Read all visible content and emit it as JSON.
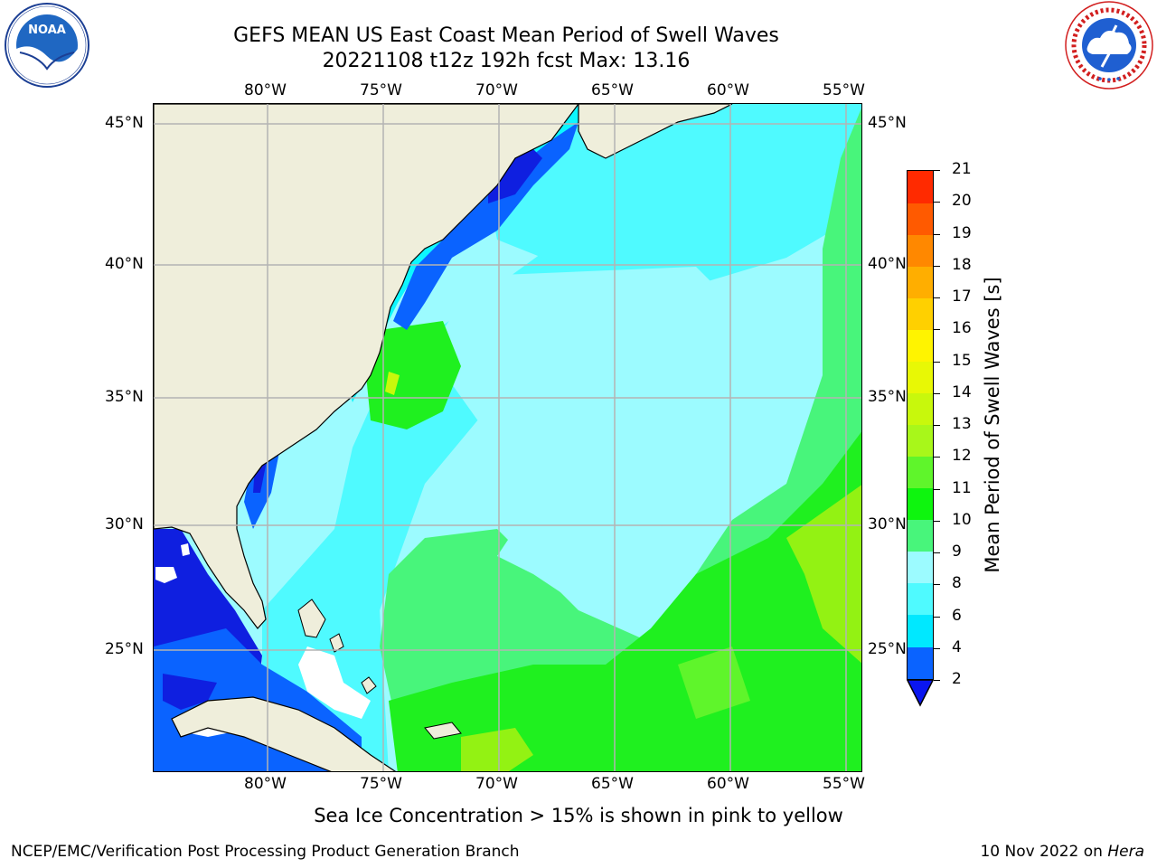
{
  "title": {
    "line1": "GEFS MEAN US East Coast Mean Period of Swell Waves",
    "line2": "20221108 t12z 192h fcst   Max: 13.16"
  },
  "logos": {
    "left": {
      "icon": "noaa-logo-icon",
      "text": "NOAA",
      "ring_text": "NATIONAL OCEANIC AND ATMOSPHERIC ADMINISTRATION · U.S. DEPARTMENT OF COMMERCE"
    },
    "right": {
      "icon": "national-weather-service-logo-icon",
      "ring_text": "NATIONAL WEATHER SERVICE"
    }
  },
  "map": {
    "lon_labels": [
      "80°W",
      "75°W",
      "70°W",
      "65°W",
      "60°W",
      "55°W"
    ],
    "lat_labels": [
      "45°N",
      "40°N",
      "35°N",
      "30°N",
      "25°N"
    ],
    "land_color": "#efeedb",
    "ocean_colors": {
      "blue": "#0f1fe0",
      "dark_blue": "#0a63ff",
      "cyan": "#0cf7ff",
      "light_cyan": "#4ffaff",
      "pale_cyan": "#9cfbff",
      "light_green": "#48f57b",
      "green": "#1ff01f",
      "yellow_green": "#93f213",
      "ice_white": "#ffffff"
    }
  },
  "colorbar": {
    "label": "Mean Period of Swell Waves [s]",
    "ticks": [
      "2",
      "4",
      "6",
      "8",
      "9",
      "10",
      "11",
      "12",
      "13",
      "14",
      "15",
      "16",
      "17",
      "18",
      "19",
      "20",
      "21"
    ],
    "colors": [
      "#0a63ff",
      "#00e8ff",
      "#4ffaff",
      "#9cfbff",
      "#48f57b",
      "#0ef50e",
      "#5ff52b",
      "#a8f71a",
      "#c8f80c",
      "#e8f805",
      "#fff400",
      "#ffd000",
      "#ffae00",
      "#ff8800",
      "#ff5a00",
      "#ff2a00"
    ],
    "underflow_color": "#0a16f0"
  },
  "note": "Sea Ice Concentration > 15% is shown in pink to yellow",
  "footer": {
    "left": "NCEP/EMC/Verification Post Processing Product Generation Branch",
    "right_date": "10 Nov 2022 on ",
    "right_host": "Hera"
  }
}
